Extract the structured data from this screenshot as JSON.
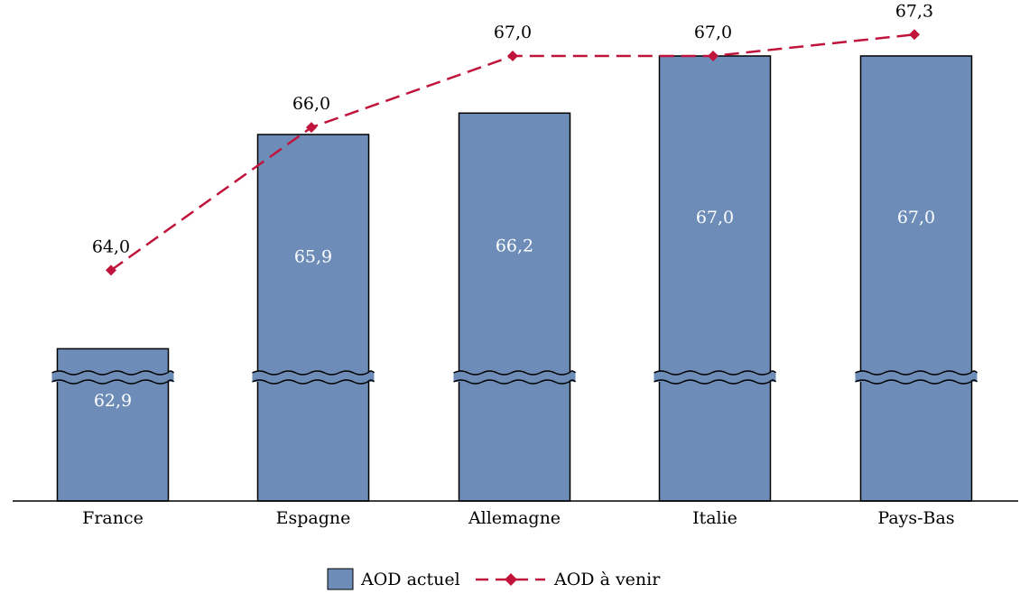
{
  "chart_data": {
    "type": "bar",
    "axis_break": true,
    "categories": [
      "France",
      "Espagne",
      "Allemagne",
      "Italie",
      "Pays-Bas"
    ],
    "series": [
      {
        "name": "AOD actuel",
        "type": "bar",
        "color": "#6d8db8",
        "values": [
          62.9,
          65.9,
          66.2,
          67.0,
          67.0
        ],
        "labels": [
          "62,9",
          "65,9",
          "66,2",
          "67,0",
          "67,0"
        ]
      },
      {
        "name": "AOD à venir",
        "type": "line",
        "style": "dashed",
        "marker": "diamond",
        "color": "#c0143c",
        "values": [
          64.0,
          66.0,
          67.0,
          67.0,
          67.3
        ],
        "labels": [
          "64,0",
          "66,0",
          "67,0",
          "67,0",
          "67,3"
        ]
      }
    ],
    "legend": {
      "position": "bottom-center"
    },
    "grid": false
  }
}
